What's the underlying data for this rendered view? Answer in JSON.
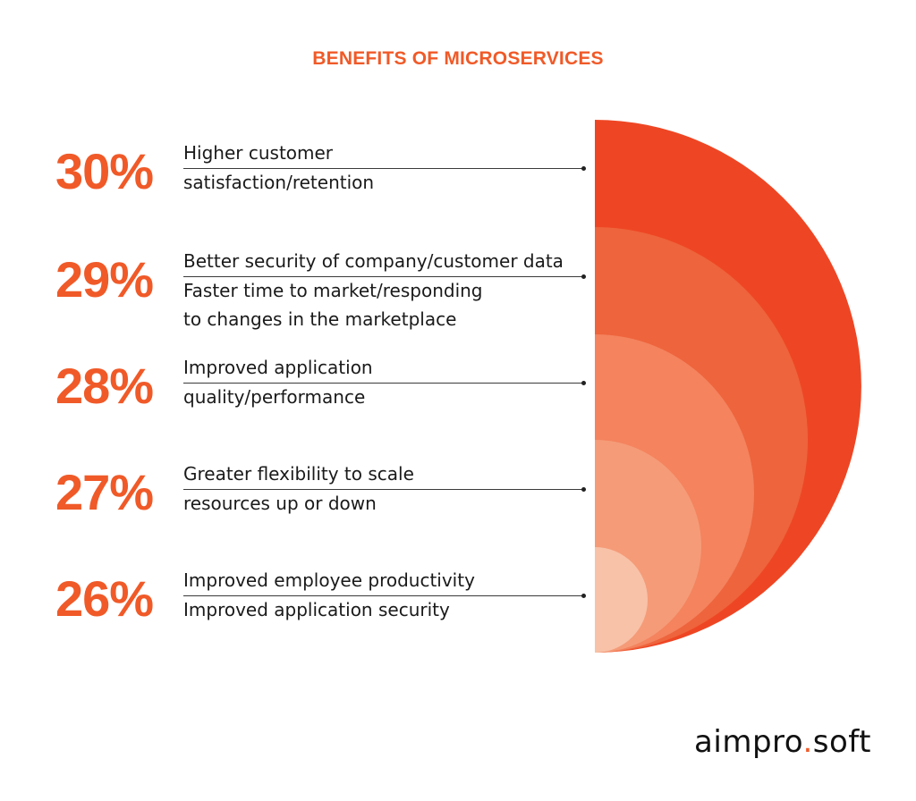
{
  "colors": {
    "accent": "#f05a28",
    "rings": [
      "#ee4624",
      "#ee643c",
      "#f4835e",
      "#f59b78",
      "#f8c2a8"
    ]
  },
  "chart_data": {
    "type": "semicircle-rings",
    "title": "BENEFITS OF MICROSERVICES",
    "rows": [
      {
        "value": 30,
        "label": "30%",
        "above": "Higher customer",
        "below": [
          "satisfaction/retention"
        ]
      },
      {
        "value": 29,
        "label": "29%",
        "above": "Better security of company/customer data",
        "below": [
          "Faster time to market/responding",
          "to changes in the marketplace"
        ]
      },
      {
        "value": 28,
        "label": "28%",
        "above": "Improved application",
        "below": [
          "quality/performance"
        ]
      },
      {
        "value": 27,
        "label": "27%",
        "above": "Greater flexibility to scale",
        "below": [
          "resources up or down"
        ]
      },
      {
        "value": 26,
        "label": "26%",
        "above": "Improved employee productivity",
        "below": [
          "Improved application security"
        ]
      }
    ]
  },
  "brand": {
    "left": "aimpro",
    "separator": ".",
    "right": "soft"
  }
}
